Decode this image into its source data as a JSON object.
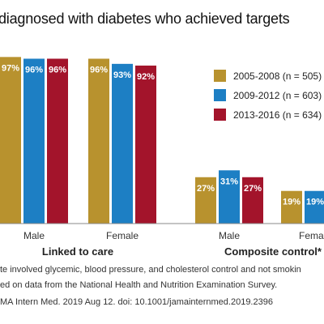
{
  "title": "diagnosed with diabetes who achieved targets",
  "chart_data": {
    "type": "bar",
    "title": "diagnosed with diabetes who achieved targets",
    "xlabel": "",
    "ylabel": "",
    "ylim": [
      0,
      100
    ],
    "grid": false,
    "legend_position": "top-right",
    "categories": [
      {
        "label": "Male",
        "group": "Linked to care"
      },
      {
        "label": "Female",
        "group": "Linked to care"
      },
      {
        "label": "Male",
        "group": "Composite control*"
      },
      {
        "label": "Female",
        "group": "Composite control*"
      }
    ],
    "groups": [
      "Linked to care",
      "Composite control*"
    ],
    "series": [
      {
        "name": "2005-2008 (n = 505)",
        "color": "#b8922e",
        "values": [
          97,
          96,
          27,
          19
        ],
        "labels": [
          "97%",
          "96%",
          "27%",
          "19%"
        ]
      },
      {
        "name": "2009-2012 (n = 603)",
        "color": "#1d7fc4",
        "values": [
          96,
          93,
          31,
          19
        ],
        "labels": [
          "96%",
          "93%",
          "31%",
          "19%"
        ]
      },
      {
        "name": "2013-2016 (n = 634)",
        "color": "#a3142b",
        "values": [
          96,
          92,
          27,
          null
        ],
        "labels": [
          "96%",
          "92%",
          "27%",
          ""
        ]
      }
    ]
  },
  "footnotes": [
    "te involved glycemic, blood pressure, and cholesterol control and not smokin",
    "ed on data from the National Health and Nutrition Examination Survey.",
    "MA Intern Med. 2019 Aug 12. doi: 10.1001/jamainternmed.2019.2396"
  ]
}
